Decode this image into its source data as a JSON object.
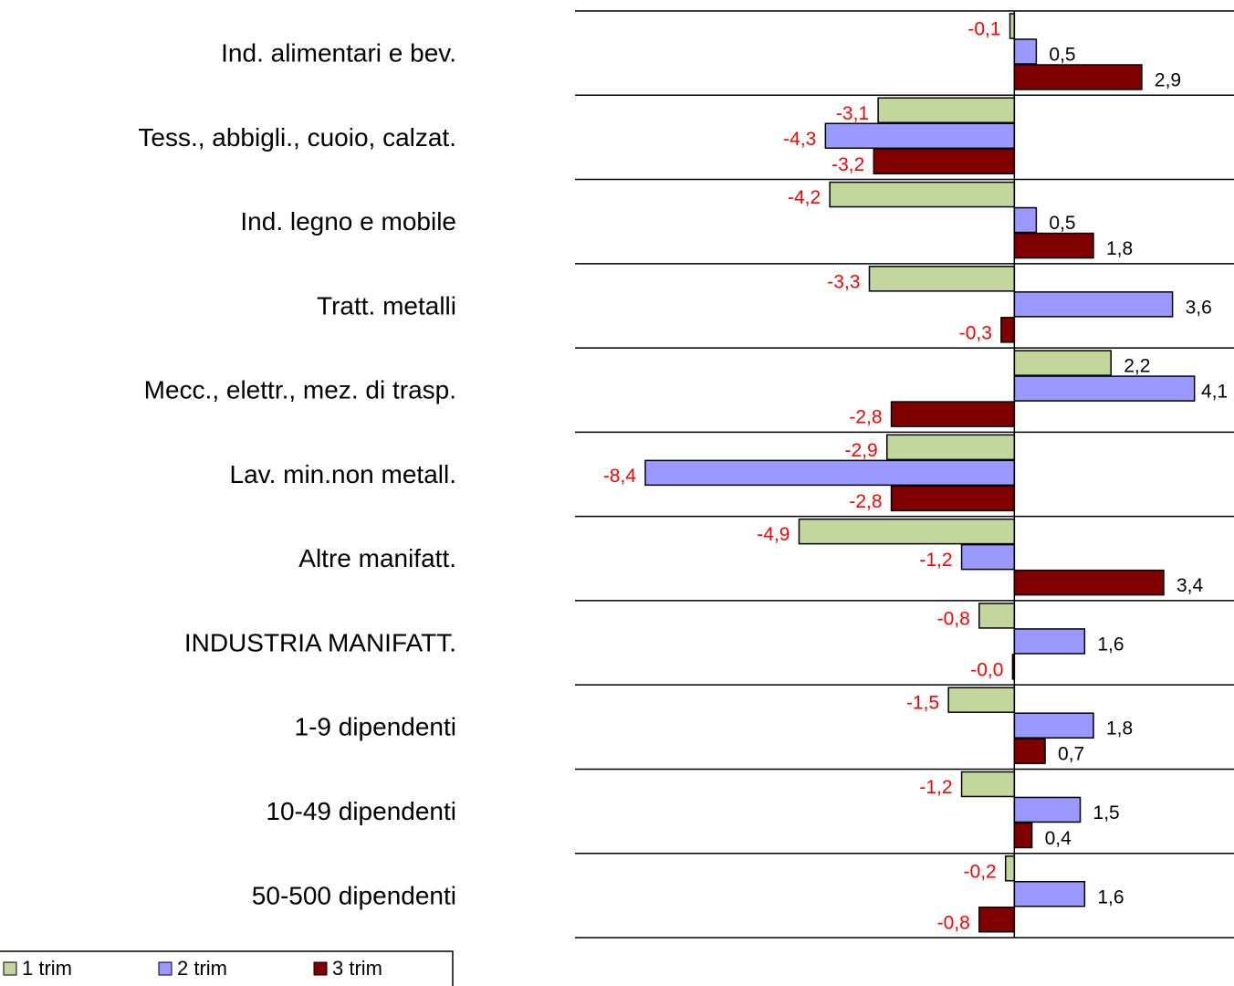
{
  "chart_data": {
    "type": "barh",
    "categories": [
      "Ind. alimentari e bev.",
      "Tess., abbigli., cuoio, calzat.",
      "Ind. legno e mobile",
      "Tratt. metalli",
      "Mecc., elettr., mez. di trasp.",
      "Lav. min.non metall.",
      "Altre manifatt.",
      "INDUSTRIA MANIFATT.",
      "1-9 dipendenti",
      "10-49 dipendenti",
      "50-500 dipendenti"
    ],
    "series": [
      {
        "name": "1 trim",
        "color": "#c3d69b",
        "values": [
          -0.1,
          -3.1,
          -4.2,
          -3.3,
          2.2,
          -2.9,
          -4.9,
          -0.8,
          -1.5,
          -1.2,
          -0.2
        ],
        "value_labels": [
          "-0,1",
          "-3,1",
          "-4,2",
          "-3,3",
          "2,2",
          "-2,9",
          "-4,9",
          "-0,8",
          "-1,5",
          "-1,2",
          "-0,2"
        ]
      },
      {
        "name": "2 trim",
        "color": "#9999ff",
        "values": [
          0.5,
          -4.3,
          0.5,
          3.6,
          4.1,
          -8.4,
          -1.2,
          1.6,
          1.8,
          1.5,
          1.6
        ],
        "value_labels": [
          "0,5",
          "-4,3",
          "0,5",
          "3,6",
          "4,1",
          "-8,4",
          "-1,2",
          "1,6",
          "1,8",
          "1,5",
          "1,6"
        ]
      },
      {
        "name": "3 trim",
        "color": "#800000",
        "values": [
          2.9,
          -3.2,
          1.8,
          -0.3,
          -2.8,
          -2.8,
          3.4,
          -0.04,
          0.7,
          0.4,
          -0.8
        ],
        "value_labels": [
          "2,9",
          "-3,2",
          "1,8",
          "-0,3",
          "-2,8",
          "-2,8",
          "3,4",
          "-0,0",
          "0,7",
          "0,4",
          "-0,8"
        ]
      }
    ],
    "xlim": [
      -10,
      5
    ],
    "legend": "bottom-left"
  }
}
